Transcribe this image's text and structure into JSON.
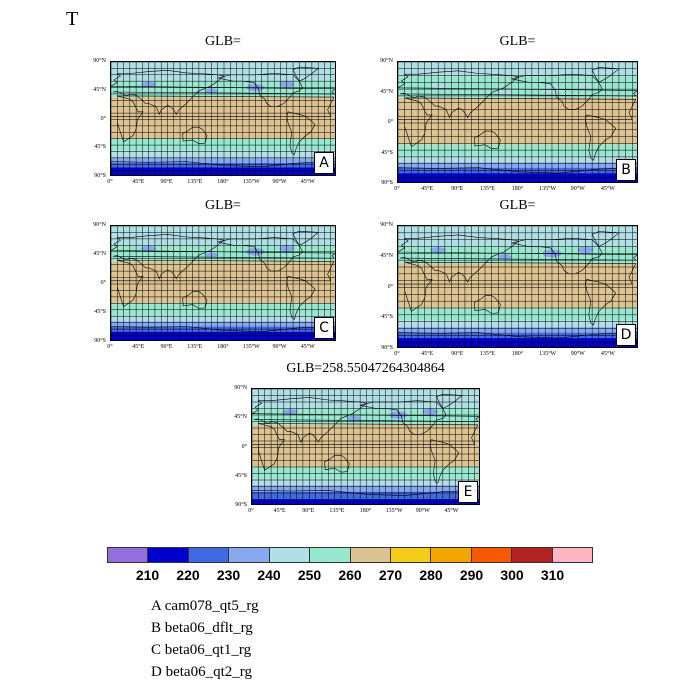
{
  "title": "T",
  "y_ticks": [
    "90°N",
    "45°N",
    "0°",
    "45°S",
    "90°S"
  ],
  "x_ticks": [
    "0°",
    "45°E",
    "90°E",
    "135°E",
    "180°",
    "135°W",
    "90°W",
    "45°W"
  ],
  "panels": [
    {
      "id": "A",
      "title": "GLB=",
      "letter": "A"
    },
    {
      "id": "B",
      "title": "GLB=",
      "letter": "B"
    },
    {
      "id": "C",
      "title": "GLB=",
      "letter": "C"
    },
    {
      "id": "D",
      "title": "GLB=",
      "letter": "D"
    },
    {
      "id": "E",
      "title": "GLB=258.55047264304864",
      "letter": "E"
    }
  ],
  "colorbar": {
    "colors": [
      "#9370db",
      "#0000cd",
      "#4169e1",
      "#87a9ef",
      "#b0e0e6",
      "#98e8d0",
      "#ddc391",
      "#f5cc1a",
      "#f5a500",
      "#f55a00",
      "#b22222",
      "#ffb6c1"
    ],
    "labels": [
      "210",
      "220",
      "230",
      "240",
      "250",
      "260",
      "270",
      "280",
      "290",
      "300",
      "310"
    ]
  },
  "legend": [
    {
      "key": "A",
      "name": "cam078_qt5_rg"
    },
    {
      "key": "B",
      "name": "beta06_dflt_rg"
    },
    {
      "key": "C",
      "name": "beta06_qt1_rg"
    },
    {
      "key": "D",
      "name": "beta06_qt2_rg"
    }
  ]
}
